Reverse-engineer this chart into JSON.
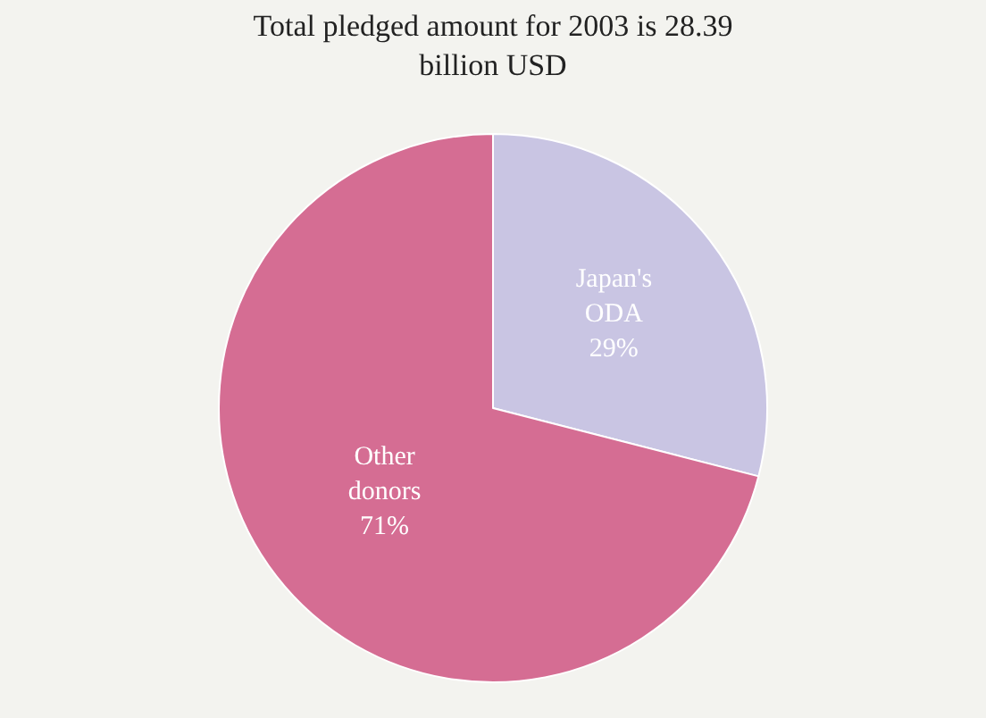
{
  "chart_data": {
    "type": "pie",
    "title": "Total pledged amount for 2003 is 28.39\nbillion USD",
    "categories": [
      "Japan's ODA",
      "Other donors"
    ],
    "values": [
      29,
      71
    ],
    "value_labels": [
      "29%",
      "71%"
    ],
    "colors": [
      "#c9c5e3",
      "#d56d93"
    ],
    "legend": false
  }
}
